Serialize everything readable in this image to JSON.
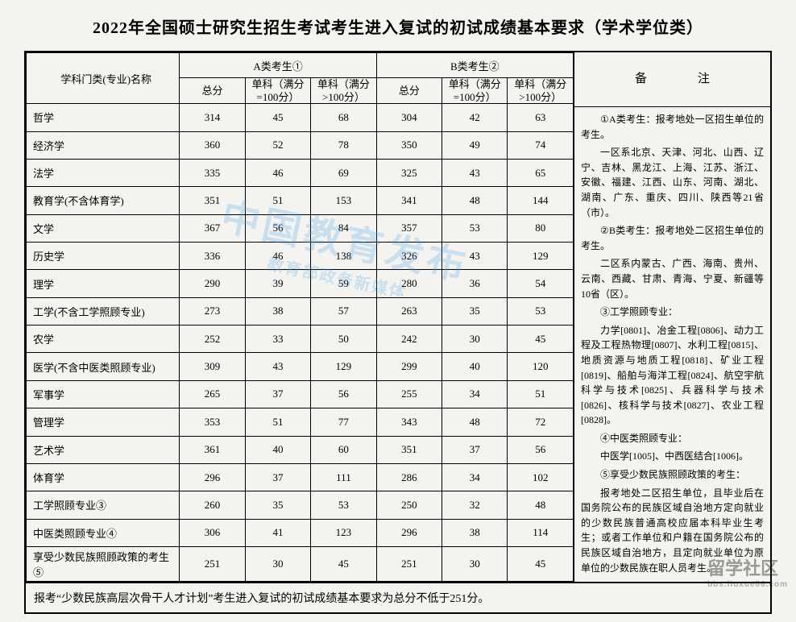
{
  "title": "2022年全国硕士研究生招生考试考生进入复试的初试成绩基本要求（学术学位类）",
  "header": {
    "subject": "学科门类(专业)名称",
    "groupA": "A类考生①",
    "groupB": "B类考生②",
    "total": "总分",
    "single100": "单科（满分=100分）",
    "singleOver100": "单科（满分>100分）",
    "notes": "备　注"
  },
  "rows": [
    {
      "name": "哲学",
      "a": [
        314,
        45,
        68
      ],
      "b": [
        304,
        42,
        63
      ]
    },
    {
      "name": "经济学",
      "a": [
        360,
        52,
        78
      ],
      "b": [
        350,
        49,
        74
      ]
    },
    {
      "name": "法学",
      "a": [
        335,
        46,
        69
      ],
      "b": [
        325,
        43,
        65
      ]
    },
    {
      "name": "教育学(不含体育学)",
      "a": [
        351,
        51,
        153
      ],
      "b": [
        341,
        48,
        144
      ]
    },
    {
      "name": "文学",
      "a": [
        367,
        56,
        84
      ],
      "b": [
        357,
        53,
        80
      ]
    },
    {
      "name": "历史学",
      "a": [
        336,
        46,
        138
      ],
      "b": [
        326,
        43,
        129
      ]
    },
    {
      "name": "理学",
      "a": [
        290,
        39,
        59
      ],
      "b": [
        280,
        36,
        54
      ]
    },
    {
      "name": "工学(不含工学照顾专业)",
      "a": [
        273,
        38,
        57
      ],
      "b": [
        263,
        35,
        53
      ]
    },
    {
      "name": "农学",
      "a": [
        252,
        33,
        50
      ],
      "b": [
        242,
        30,
        45
      ]
    },
    {
      "name": "医学(不含中医类照顾专业)",
      "a": [
        309,
        43,
        129
      ],
      "b": [
        299,
        40,
        120
      ]
    },
    {
      "name": "军事学",
      "a": [
        265,
        37,
        56
      ],
      "b": [
        255,
        34,
        51
      ]
    },
    {
      "name": "管理学",
      "a": [
        353,
        51,
        77
      ],
      "b": [
        343,
        48,
        72
      ]
    },
    {
      "name": "艺术学",
      "a": [
        361,
        40,
        60
      ],
      "b": [
        351,
        37,
        56
      ]
    },
    {
      "name": "体育学",
      "a": [
        296,
        37,
        111
      ],
      "b": [
        286,
        34,
        102
      ]
    },
    {
      "name": "工学照顾专业③",
      "a": [
        260,
        35,
        53
      ],
      "b": [
        250,
        32,
        48
      ]
    },
    {
      "name": "中医类照顾专业④",
      "a": [
        306,
        41,
        123
      ],
      "b": [
        296,
        38,
        114
      ]
    },
    {
      "name": "享受少数民族照顾政策的考生⑤",
      "a": [
        251,
        30,
        45
      ],
      "b": [
        251,
        30,
        45
      ]
    }
  ],
  "bottomNote": "报考“少数民族高层次骨干人才计划”考生进入复试的初试成绩基本要求为总分不低于251分。",
  "notes": {
    "p1": "①A类考生：报考地处一区招生单位的考生。",
    "p2": "一区系北京、天津、河北、山西、辽宁、吉林、黑龙江、上海、江苏、浙江、安徽、福建、江西、山东、河南、湖北、湖南、广东、重庆、四川、陕西等21省（市）。",
    "p3": "②B类考生：报考地处二区招生单位的考生。",
    "p4": "二区系内蒙古、广西、海南、贵州、云南、西藏、甘肃、青海、宁夏、新疆等10省（区）。",
    "p5": "③工学照顾专业：",
    "p6": "力学[0801]、冶金工程[0806]、动力工程及工程热物理[0807]、水利工程[0815]、地质资源与地质工程[0818]、矿业工程[0819]、船舶与海洋工程[0824]、航空宇航科学与技术[0825]、兵器科学与技术[0826]、核科学与技术[0827]、农业工程[0828]。",
    "p7": "④中医类照顾专业：",
    "p8": "中医学[1005]、中西医结合[1006]。",
    "p9": "⑤享受少数民族照顾政策的考生：",
    "p10": "报考地处二区招生单位，且毕业后在国务院公布的民族区域自治地方定向就业的少数民族普通高校应届本科毕业生考生；或者工作单位和户籍在国务院公布的民族区域自治地方，且定向就业单位为原单位的少数民族在职人员考生。"
  },
  "watermark": {
    "main": "中国教育发布",
    "sub": "教育部政务新媒体"
  },
  "siteLogo": {
    "main": "留学社区",
    "sub": "bbs.liuxue86.com"
  },
  "style": {
    "border_color": "#000000",
    "background_color": "#f5f3f0",
    "title_fontsize": 20,
    "cell_fontsize": 13,
    "notes_fontsize": 12,
    "watermark_color": "#4fa8e8",
    "watermark_opacity": 0.25
  }
}
